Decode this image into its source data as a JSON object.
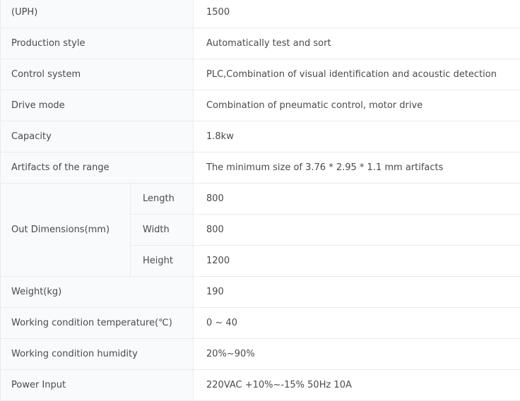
{
  "rows": [
    {
      "label": "(UPH)",
      "value": "1500"
    },
    {
      "label": "Production style",
      "value": "Automatically test and sort"
    },
    {
      "label": "Control system",
      "value": "PLC,Combination of visual identification and acoustic detection"
    },
    {
      "label": "Drive mode",
      "value": "Combination of pneumatic control, motor drive"
    },
    {
      "label": "Capacity",
      "value": "1.8kw"
    },
    {
      "label": "Artifacts of the range",
      "value": "The minimum size of 3.76 * 2.95 * 1.1 mm artifacts"
    }
  ],
  "dimensions": {
    "label": "Out Dimensions(mm)",
    "items": [
      {
        "label": "Length",
        "value": "800"
      },
      {
        "label": "Width",
        "value": "800"
      },
      {
        "label": "Height",
        "value": "1200"
      }
    ]
  },
  "rows2": [
    {
      "label": "Weight(kg)",
      "value": "190"
    },
    {
      "label": "Working condition temperature(℃)",
      "value": "0 ~ 40"
    },
    {
      "label": "Working condition humidity",
      "value": "20%~90%"
    },
    {
      "label": "Power Input",
      "value": "220VAC +10%~-15% 50Hz 10A"
    }
  ]
}
